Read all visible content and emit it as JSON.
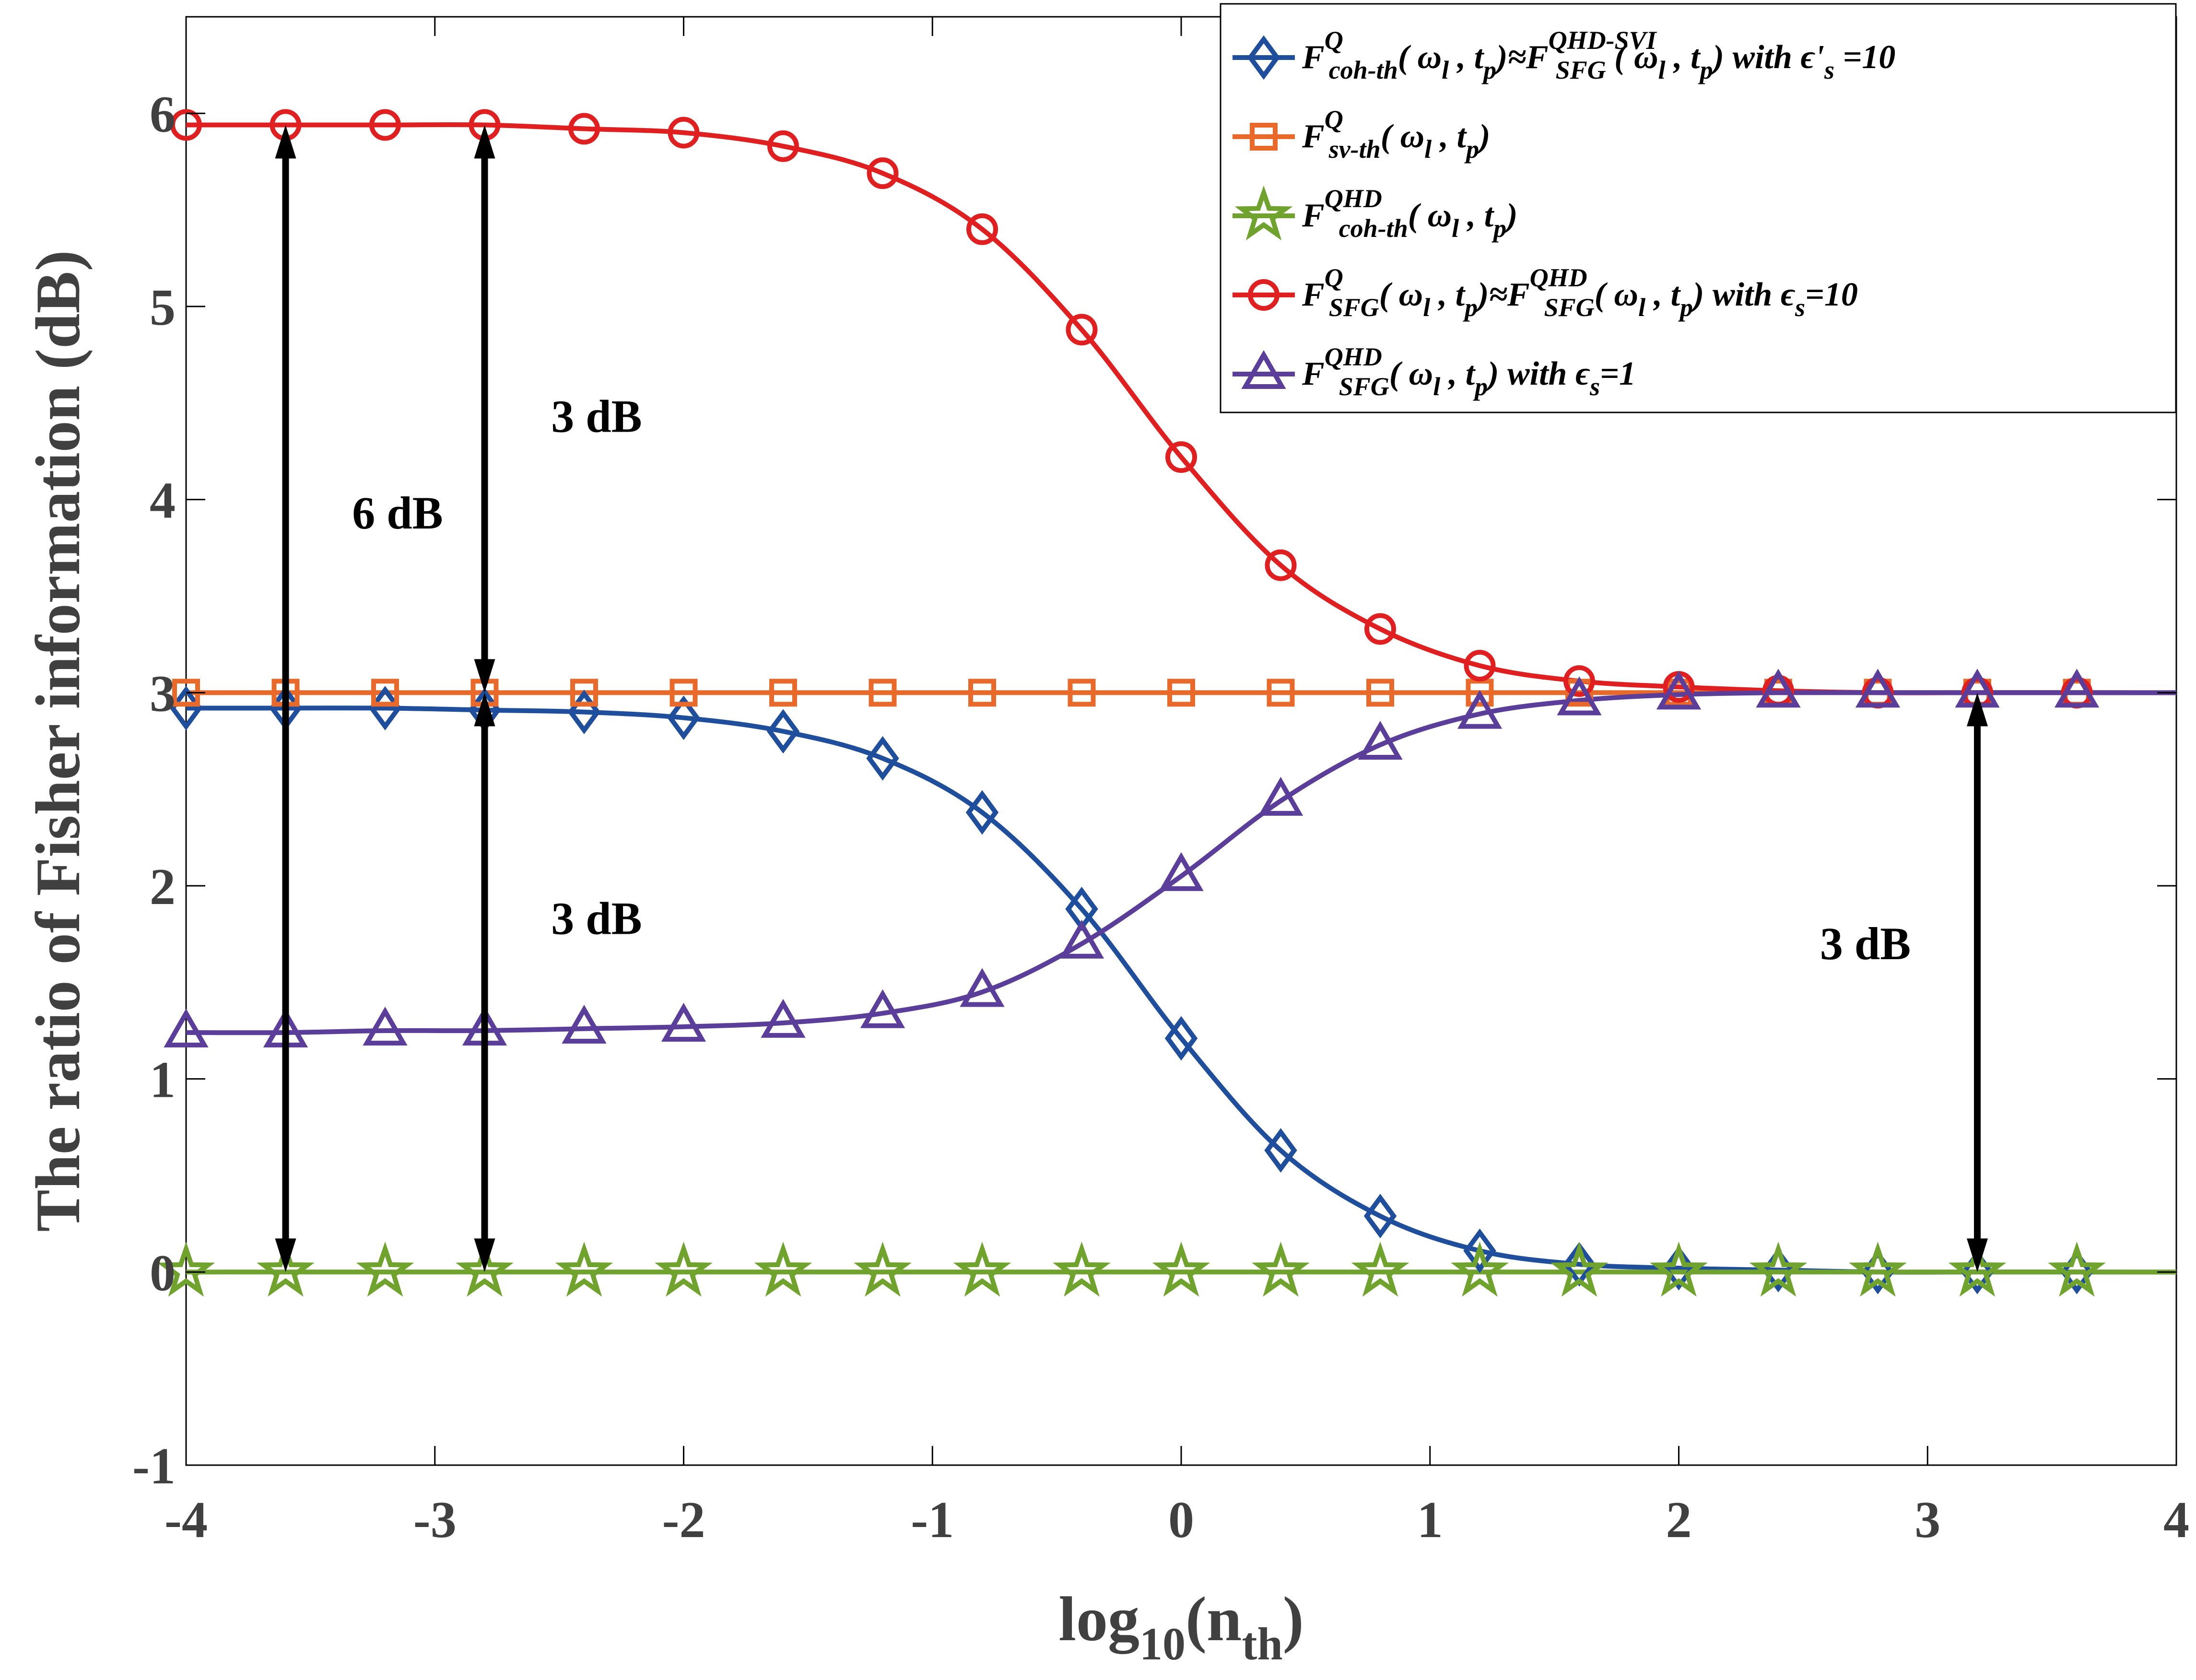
{
  "chart_data": {
    "type": "line",
    "xlabel": {
      "main": "log",
      "sub1": "10",
      "paren_open": "(n",
      "sub2": "th",
      "paren_close": ")"
    },
    "ylabel": "The ratio of Fisher information (dB)",
    "xlim": [
      -4,
      4
    ],
    "ylim": [
      -1,
      6.5
    ],
    "xticks": [
      -4,
      -3,
      -2,
      -1,
      0,
      1,
      2,
      3,
      4
    ],
    "yticks": [
      -1,
      0,
      1,
      2,
      3,
      4,
      5,
      6
    ],
    "grid": false,
    "legend_position": "top-right",
    "x": [
      -4.0,
      -3.6,
      -3.2,
      -2.8,
      -2.4,
      -2.0,
      -1.6,
      -1.2,
      -0.8,
      -0.4,
      0.0,
      0.4,
      0.8,
      1.2,
      1.6,
      2.0,
      2.4,
      2.8,
      3.2,
      3.6
    ],
    "series": [
      {
        "id": "coh_sfg_svi",
        "color": "#1f4e9c",
        "marker": "diamond",
        "values": [
          2.92,
          2.92,
          2.92,
          2.91,
          2.9,
          2.87,
          2.8,
          2.66,
          2.38,
          1.88,
          1.21,
          0.63,
          0.29,
          0.11,
          0.04,
          0.02,
          0.01,
          0.0,
          0.0,
          0.0
        ],
        "legend": {
          "F": "F",
          "sup1": "Q",
          "sub1": "coh-th",
          "args1": "( ω",
          "argsub_l": "l",
          "comma": " , t",
          "argsub_p": "p",
          "close1": ")≈F",
          "sup2": "QHD-SVI",
          "sub2": "SFG",
          "args2": " ( ω",
          "close2": ")  with ϵ'",
          "eps_sub": "s",
          "tail": " =10"
        }
      },
      {
        "id": "sv_th",
        "color": "#e8692a",
        "marker": "square",
        "values": [
          3.0,
          3.0,
          3.0,
          3.0,
          3.0,
          3.0,
          3.0,
          3.0,
          3.0,
          3.0,
          3.0,
          3.0,
          3.0,
          3.0,
          3.0,
          3.0,
          3.0,
          3.0,
          3.0,
          3.0
        ],
        "legend": {
          "F": "F",
          "sup1": "Q",
          "sub1": "sv-th",
          "args1": "( ω",
          "argsub_l": "l",
          "comma": " , t",
          "argsub_p": "p",
          "close1": ")"
        }
      },
      {
        "id": "coh_qhd",
        "color": "#6fa32e",
        "marker": "star",
        "values": [
          0.0,
          0.0,
          0.0,
          0.0,
          0.0,
          0.0,
          0.0,
          0.0,
          0.0,
          0.0,
          0.0,
          0.0,
          0.0,
          0.0,
          0.0,
          0.0,
          0.0,
          0.0,
          0.0,
          0.0
        ],
        "legend": {
          "F": "F",
          "sup1": "QHD",
          "sub1": "coh-th",
          "args1": "( ω",
          "argsub_l": "l",
          "comma": " , t",
          "argsub_p": "p",
          "close1": ")"
        }
      },
      {
        "id": "sfg_q_eps10",
        "color": "#e02020",
        "marker": "circle",
        "values": [
          5.94,
          5.94,
          5.94,
          5.94,
          5.92,
          5.9,
          5.83,
          5.69,
          5.4,
          4.88,
          4.22,
          3.66,
          3.33,
          3.14,
          3.06,
          3.03,
          3.01,
          3.0,
          3.0,
          3.0
        ],
        "legend": {
          "F": "F",
          "sup1": "Q",
          "sub1": "SFG",
          "args1": "( ω",
          "argsub_l": "l",
          "comma": " , t",
          "argsub_p": "p",
          "close1": ")≈F",
          "sup2": "QHD",
          "sub2": "SFG",
          "args2": "( ω",
          "close2": ") with ϵ",
          "eps_sub": "s",
          "tail": "=10"
        }
      },
      {
        "id": "sfg_qhd_eps1",
        "color": "#5a3e99",
        "marker": "triangle",
        "values": [
          1.24,
          1.24,
          1.25,
          1.25,
          1.26,
          1.27,
          1.29,
          1.34,
          1.45,
          1.7,
          2.05,
          2.44,
          2.73,
          2.89,
          2.96,
          2.99,
          3.0,
          3.0,
          3.0,
          3.0
        ],
        "legend": {
          "F": "F",
          "sup1": "QHD",
          "sub1": "SFG",
          "args1": "( ω",
          "argsub_l": "l",
          "comma": " , t",
          "argsub_p": "p",
          "close1": ") with ϵ",
          "eps_sub": "s",
          "tail": "=1"
        }
      }
    ],
    "annotations": [
      {
        "label": "6 dB",
        "x": -3.6,
        "y_from": 5.94,
        "y_to": 0.0,
        "label_x": -3.15,
        "label_y": 3.85
      },
      {
        "label": "3 dB",
        "x": -2.8,
        "y_from": 5.94,
        "y_to": 3.0,
        "label_x": -2.35,
        "label_y": 4.35
      },
      {
        "label": "3 dB",
        "x": -2.8,
        "y_from": 3.0,
        "y_to": 0.0,
        "label_x": -2.35,
        "label_y": 1.75
      },
      {
        "label": "3 dB",
        "x": 3.2,
        "y_from": 3.0,
        "y_to": 0.0,
        "label_x": 2.75,
        "label_y": 1.62
      }
    ]
  }
}
